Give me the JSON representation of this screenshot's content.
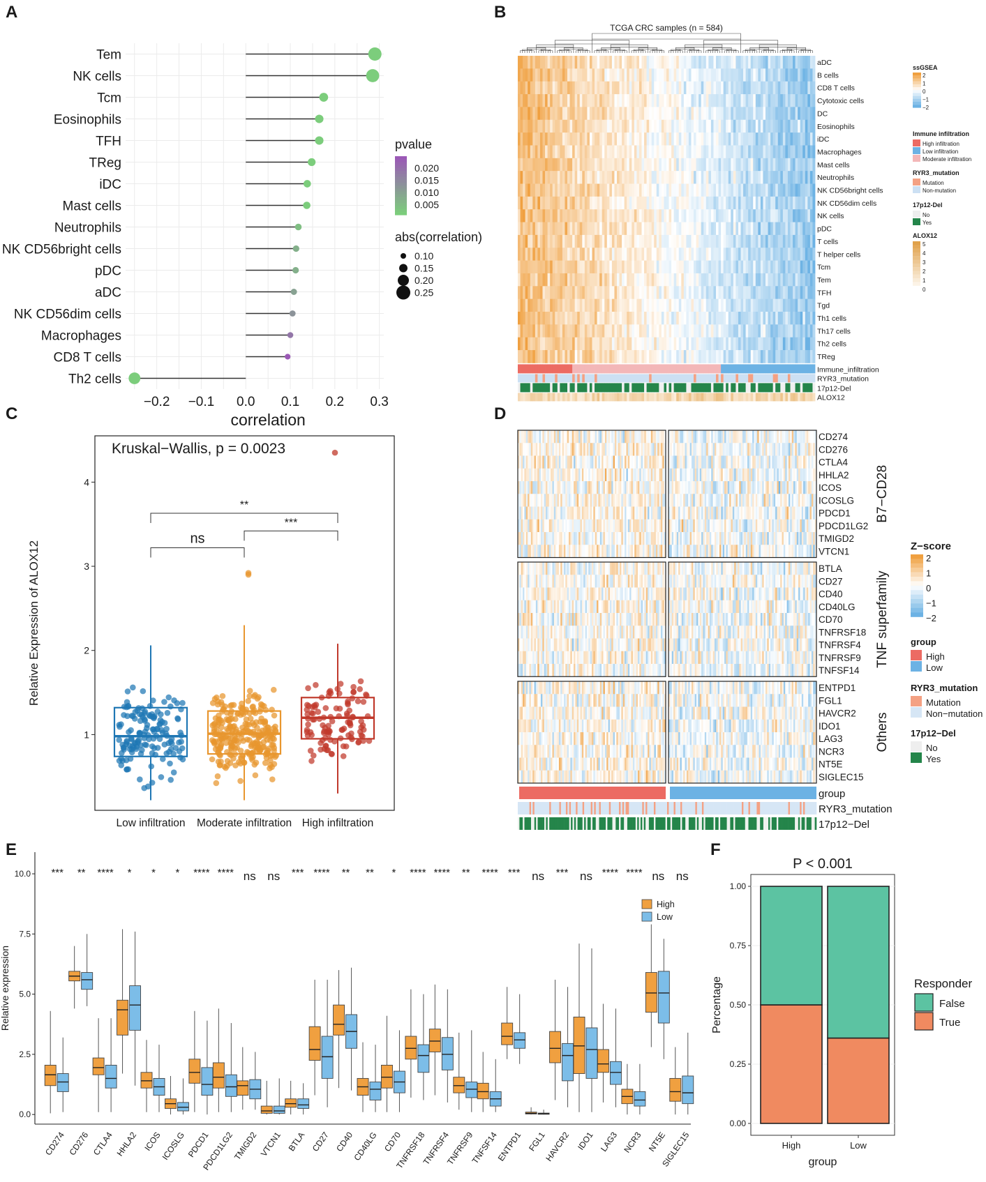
{
  "panels": {
    "A": "A",
    "B": "B",
    "C": "C",
    "D": "D",
    "E": "E",
    "F": "F"
  },
  "colors": {
    "orange": "#F0A040",
    "blue": "#6CB2E4",
    "red": "#EC6B63",
    "salmon": "#F4A183",
    "lightpink": "#F3B7B8",
    "lightblue": "#CCE0F3",
    "green": "#24854A",
    "teal": "#5CC3A2",
    "lilac": "#B7D3F0",
    "purple": "#9B59B6",
    "lightgreen": "#7CCD7C"
  },
  "chart_data": [
    {
      "panel": "A",
      "type": "lollipop",
      "categories": [
        "Tem",
        "NK cells",
        "Tcm",
        "Eosinophils",
        "TFH",
        "TReg",
        "iDC",
        "Mast cells",
        "Neutrophils",
        "NK CD56bright cells",
        "pDC",
        "aDC",
        "NK CD56dim cells",
        "Macrophages",
        "CD8 T cells",
        "Th2 cells"
      ],
      "values": [
        0.29,
        0.285,
        0.175,
        0.165,
        0.165,
        0.148,
        0.138,
        0.137,
        0.118,
        0.113,
        0.112,
        0.108,
        0.105,
        0.1,
        0.094,
        -0.25
      ],
      "pvalues": [
        0.001,
        0.001,
        0.002,
        0.002,
        0.002,
        0.003,
        0.003,
        0.004,
        0.006,
        0.008,
        0.008,
        0.01,
        0.012,
        0.016,
        0.02,
        0.001
      ],
      "xlabel": "correlation",
      "xticks": [
        "−0.2",
        "−0.1",
        "0.0",
        "0.1",
        "0.2",
        "0.3"
      ],
      "xlim": [
        -0.27,
        0.31
      ],
      "legend_pvalue_title": "pvalue",
      "legend_pvalue_ticks": [
        "0.020",
        "0.015",
        "0.010",
        "0.005"
      ],
      "legend_size_title": "abs(correlation)",
      "legend_size_ticks": [
        "0.10",
        "0.15",
        "0.20",
        "0.25"
      ]
    },
    {
      "panel": "B",
      "type": "heatmap",
      "title": "TCGA CRC samples (n = 584)",
      "rows": [
        "aDC",
        "B cells",
        "CD8 T cells",
        "Cytotoxic cells",
        "DC",
        "Eosinophils",
        "iDC",
        "Macrophages",
        "Mast cells",
        "Neutrophils",
        "NK CD56bright cells",
        "NK CD56dim cells",
        "NK cells",
        "pDC",
        "T cells",
        "T helper cells",
        "Tcm",
        "Tem",
        "TFH",
        "Tgd",
        "Th1 cells",
        "Th17 cells",
        "Th2 cells",
        "TReg"
      ],
      "annotation_rows": [
        "Immune_infiltration",
        "RYR3_mutation",
        "17p12-Del",
        "ALOX12"
      ],
      "legend": {
        "ssgsea_title": "ssGSEA",
        "ssgsea_ticks": [
          "2",
          "1",
          "0",
          "−1",
          "−2"
        ],
        "immune_title": "Immune infiltration",
        "immune_items": [
          "High infiltration",
          "Low infiltration",
          "Moderate infiltration"
        ],
        "ryr3_title": "RYR3_mutation",
        "ryr3_items": [
          "Mutation",
          "Non-mutation"
        ],
        "del_title": "17p12-Del",
        "del_items": [
          "No",
          "Yes"
        ],
        "alox_title": "ALOX12",
        "alox_ticks": [
          "5",
          "4",
          "3",
          "2",
          "1",
          "0"
        ]
      }
    },
    {
      "panel": "C",
      "type": "boxplot",
      "title": "Kruskal−Wallis, p = 0.0023",
      "categories": [
        "Low infiltration",
        "Moderate infiltration",
        "High infiltration"
      ],
      "ylabel": "Relative Expression of ALOX12",
      "yticks": [
        "1",
        "2",
        "3",
        "4"
      ],
      "ylim": [
        0.1,
        4.55
      ],
      "boxes": [
        {
          "q1": 0.74,
          "median": 0.98,
          "q3": 1.32,
          "wlo": 0.22,
          "whi": 2.06,
          "n": 150
        },
        {
          "q1": 0.77,
          "median": 1.01,
          "q3": 1.28,
          "wlo": 0.22,
          "whi": 2.3,
          "n": 270
        },
        {
          "q1": 0.95,
          "median": 1.2,
          "q3": 1.44,
          "wlo": 0.3,
          "whi": 2.08,
          "n": 110
        }
      ],
      "outliers": [
        {
          "group": 1,
          "y": 2.9
        },
        {
          "group": 1,
          "y": 2.92
        },
        {
          "group": 2,
          "y": 4.35
        }
      ],
      "comparisons": [
        {
          "from": 0,
          "to": 1,
          "y": 3.22,
          "label": "ns"
        },
        {
          "from": 1,
          "to": 2,
          "y": 3.42,
          "label": "***"
        },
        {
          "from": 0,
          "to": 2,
          "y": 3.63,
          "label": "**"
        }
      ]
    },
    {
      "panel": "D",
      "type": "heatmap",
      "groups": [
        {
          "name": "B7−CD28",
          "rows": [
            "CD274",
            "CD276",
            "CTLA4",
            "HHLA2",
            "ICOS",
            "ICOSLG",
            "PDCD1",
            "PDCD1LG2",
            "TMIGD2",
            "VTCN1"
          ]
        },
        {
          "name": "TNF superfamily",
          "rows": [
            "BTLA",
            "CD27",
            "CD40",
            "CD40LG",
            "CD70",
            "TNFRSF18",
            "TNFRSF4",
            "TNFRSF9",
            "TNFSF14"
          ]
        },
        {
          "name": "Others",
          "rows": [
            "ENTPD1",
            "FGL1",
            "HAVCR2",
            "IDO1",
            "LAG3",
            "NCR3",
            "NT5E",
            "SIGLEC15"
          ]
        }
      ],
      "annotation_rows": [
        "group",
        "RYR3_mutation",
        "17p12−Del"
      ],
      "legend": {
        "zscore_title": "Z−score",
        "zscore_ticks": [
          "2",
          "1",
          "0",
          "−1",
          "−2"
        ],
        "group_title": "group",
        "group_items": [
          "High",
          "Low"
        ],
        "ryr3_title": "RYR3_mutation",
        "ryr3_items": [
          "Mutation",
          "Non−mutation"
        ],
        "del_title": "17p12−Del",
        "del_items": [
          "No",
          "Yes"
        ]
      }
    },
    {
      "panel": "E",
      "type": "boxplot",
      "ylabel": "Relative expression",
      "yticks": [
        "0.0",
        "2.5",
        "5.0",
        "7.5",
        "10.0"
      ],
      "ylim": [
        -0.4,
        10.9
      ],
      "legend": [
        "High",
        "Low"
      ],
      "series": [
        {
          "name": "High",
          "boxes": [
            [
              0.05,
              1.2,
              1.65,
              2.05,
              4.3
            ],
            [
              4.4,
              5.55,
              5.75,
              5.95,
              7.0
            ],
            [
              0.1,
              1.65,
              1.95,
              2.35,
              4.0
            ],
            [
              1.7,
              3.3,
              4.35,
              4.75,
              7.7
            ],
            [
              0.1,
              1.1,
              1.4,
              1.75,
              3.1
            ],
            [
              0,
              0.25,
              0.45,
              0.65,
              1.6
            ],
            [
              0.1,
              1.3,
              1.75,
              2.3,
              4.3
            ],
            [
              0.1,
              1.1,
              1.55,
              2.15,
              4.4
            ],
            [
              0.2,
              0.8,
              1.2,
              1.4,
              2.8
            ],
            [
              0,
              0.05,
              0.15,
              0.35,
              1.4
            ],
            [
              0,
              0.3,
              0.45,
              0.65,
              1.4
            ],
            [
              0.8,
              2.25,
              2.7,
              3.65,
              5.6
            ],
            [
              1.1,
              3.3,
              3.75,
              4.55,
              6.0
            ],
            [
              0.1,
              0.8,
              1.15,
              1.5,
              3.0
            ],
            [
              0.1,
              1.1,
              1.55,
              2.05,
              4.1
            ],
            [
              0.7,
              2.3,
              2.75,
              3.25,
              5.2
            ],
            [
              0.8,
              2.6,
              3.05,
              3.55,
              5.4
            ],
            [
              0.2,
              0.9,
              1.2,
              1.55,
              3.4
            ],
            [
              0.1,
              0.65,
              0.95,
              1.3,
              2.6
            ],
            [
              2.3,
              2.9,
              3.25,
              3.8,
              5.3
            ],
            [
              0,
              0.02,
              0.05,
              0.1,
              0.3
            ],
            [
              0.6,
              2.15,
              2.75,
              3.45,
              5.6
            ],
            [
              0.1,
              1.7,
              2.85,
              4.05,
              7.1
            ],
            [
              0.5,
              1.75,
              2.1,
              2.7,
              4.6
            ],
            [
              0,
              0.45,
              0.75,
              1.05,
              2.1
            ],
            [
              2.8,
              4.25,
              5.05,
              5.9,
              7.9
            ],
            [
              0,
              0.55,
              0.95,
              1.5,
              2.8
            ]
          ]
        },
        {
          "name": "Low",
          "boxes": [
            [
              0.1,
              0.95,
              1.35,
              1.7,
              3.2
            ],
            [
              4.5,
              5.2,
              5.6,
              5.9,
              7.5
            ],
            [
              0.1,
              1.1,
              1.5,
              2.05,
              4.0
            ],
            [
              1.2,
              3.5,
              4.55,
              5.35,
              7.6
            ],
            [
              0.1,
              0.8,
              1.15,
              1.5,
              2.9
            ],
            [
              0,
              0.15,
              0.3,
              0.5,
              1.5
            ],
            [
              0,
              0.8,
              1.25,
              1.95,
              3.9
            ],
            [
              0.1,
              0.75,
              1.15,
              1.65,
              3.8
            ],
            [
              0.2,
              0.65,
              1.05,
              1.45,
              2.6
            ],
            [
              0,
              0.05,
              0.15,
              0.35,
              1.5
            ],
            [
              0,
              0.25,
              0.4,
              0.65,
              1.3
            ],
            [
              0.3,
              1.5,
              2.4,
              3.25,
              5.6
            ],
            [
              1.0,
              2.75,
              3.45,
              4.15,
              6.1
            ],
            [
              0.1,
              0.6,
              1.05,
              1.35,
              2.9
            ],
            [
              0.1,
              0.9,
              1.35,
              1.8,
              3.5
            ],
            [
              0.6,
              1.75,
              2.45,
              2.9,
              5.0
            ],
            [
              0.5,
              1.85,
              2.5,
              3.2,
              5.2
            ],
            [
              0.1,
              0.7,
              1.05,
              1.35,
              3.5
            ],
            [
              0.1,
              0.35,
              0.65,
              0.95,
              2.3
            ],
            [
              2.1,
              2.75,
              3.1,
              3.4,
              5.0
            ],
            [
              0,
              0.01,
              0.03,
              0.06,
              0.2
            ],
            [
              0.3,
              1.4,
              2.45,
              2.95,
              5.3
            ],
            [
              0.1,
              1.5,
              2.7,
              3.6,
              6.9
            ],
            [
              0.3,
              1.25,
              1.75,
              2.2,
              4.4
            ],
            [
              0,
              0.35,
              0.6,
              0.95,
              2.1
            ],
            [
              2.3,
              3.8,
              5.05,
              5.95,
              7.3
            ],
            [
              0,
              0.45,
              0.9,
              1.6,
              3.4
            ]
          ]
        }
      ],
      "categories": [
        "CD274",
        "CD276",
        "CTLA4",
        "HHLA2",
        "ICOS",
        "ICOSLG",
        "PDCD1",
        "PDCD1LG2",
        "TMIGD2",
        "VTCN1",
        "BTLA",
        "CD27",
        "CD40",
        "CD40LG",
        "CD70",
        "TNFRSF18",
        "TNFRSF4",
        "TNFRSF9",
        "TNFSF14",
        "ENTPD1",
        "FGL1",
        "HAVCR2",
        "IDO1",
        "LAG3",
        "NCR3",
        "NT5E",
        "SIGLEC15"
      ],
      "significance": [
        "***",
        "**",
        "****",
        "*",
        "*",
        "*",
        "****",
        "****",
        "ns",
        "ns",
        "***",
        "****",
        "**",
        "**",
        "*",
        "****",
        "****",
        "**",
        "****",
        "***",
        "ns",
        "***",
        "ns",
        "****",
        "****",
        "ns",
        "ns"
      ]
    },
    {
      "panel": "F",
      "type": "stacked_bar",
      "title": "P < 0.001",
      "categories": [
        "High",
        "Low"
      ],
      "xlabel": "group",
      "ylabel": "Percentage",
      "yticks": [
        "0.00",
        "0.25",
        "0.50",
        "0.75",
        "1.00"
      ],
      "ylim": [
        -0.05,
        1.05
      ],
      "series": [
        {
          "name": "True",
          "values": [
            0.5,
            0.36
          ]
        },
        {
          "name": "False",
          "values": [
            0.5,
            0.64
          ]
        }
      ],
      "legend_title": "Responder",
      "legend_items": [
        "False",
        "True"
      ]
    }
  ]
}
